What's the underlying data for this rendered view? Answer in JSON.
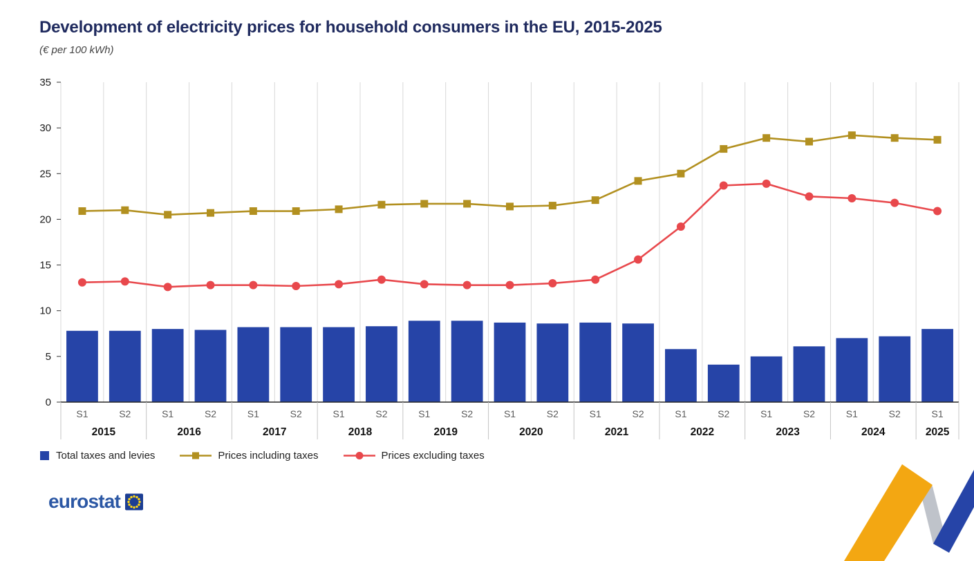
{
  "header": {
    "title": "Development of electricity prices for household consumers in the EU, 2015-2025",
    "subtitle": "(€ per 100 kWh)"
  },
  "legend": [
    {
      "id": "total-taxes-and-levies",
      "label": "Total taxes and levies",
      "swatch": "bar",
      "color": "#2644a7"
    },
    {
      "id": "prices-including-taxes",
      "label": "Prices including taxes",
      "swatch": "line-square",
      "color": "#b29020"
    },
    {
      "id": "prices-excluding-taxes",
      "label": "Prices excluding taxes",
      "swatch": "line-circle",
      "color": "#e8484c"
    }
  ],
  "footer": {
    "logo_text": "eurostat"
  },
  "colors": {
    "bar_blue": "#2644a7",
    "line_olive": "#b29020",
    "line_red": "#e8484c",
    "grid_gray": "#d8d8d8",
    "axis_dark": "#262626",
    "logo_blue": "#2b57a4",
    "flag_blue": "#1c3e94",
    "flag_star_yellow": "#ffd617",
    "ribbon_yellow": "#f3a712",
    "ribbon_gray": "#bfc3ca",
    "ribbon_blue": "#2644a7"
  },
  "chart_data": {
    "type": "bar",
    "subtype": "bar+line combo",
    "title": "Development of electricity prices for household consumers in the EU, 2015-2025",
    "unit": "€ per 100 kWh",
    "ylim": [
      0,
      35
    ],
    "yticks": [
      0,
      5,
      10,
      15,
      20,
      25,
      30,
      35
    ],
    "grid": "vertical-only",
    "legend_position": "bottom",
    "periods": [
      "S1",
      "S2",
      "S1",
      "S2",
      "S1",
      "S2",
      "S1",
      "S2",
      "S1",
      "S2",
      "S1",
      "S2",
      "S1",
      "S2",
      "S1",
      "S2",
      "S1",
      "S2",
      "S1",
      "S2",
      "S1"
    ],
    "year_groups": [
      {
        "year": "2015",
        "count": 2
      },
      {
        "year": "2016",
        "count": 2
      },
      {
        "year": "2017",
        "count": 2
      },
      {
        "year": "2018",
        "count": 2
      },
      {
        "year": "2019",
        "count": 2
      },
      {
        "year": "2020",
        "count": 2
      },
      {
        "year": "2021",
        "count": 2
      },
      {
        "year": "2022",
        "count": 2
      },
      {
        "year": "2023",
        "count": 2
      },
      {
        "year": "2024",
        "count": 2
      },
      {
        "year": "2025",
        "count": 1
      }
    ],
    "categories": [
      "2015-S1",
      "2015-S2",
      "2016-S1",
      "2016-S2",
      "2017-S1",
      "2017-S2",
      "2018-S1",
      "2018-S2",
      "2019-S1",
      "2019-S2",
      "2020-S1",
      "2020-S2",
      "2021-S1",
      "2021-S2",
      "2022-S1",
      "2022-S2",
      "2023-S1",
      "2023-S2",
      "2024-S1",
      "2024-S2",
      "2025-S1"
    ],
    "series": [
      {
        "name": "Total taxes and levies",
        "kind": "bar",
        "color": "#2644a7",
        "values": [
          7.8,
          7.8,
          8.0,
          7.9,
          8.2,
          8.2,
          8.2,
          8.3,
          8.9,
          8.9,
          8.7,
          8.6,
          8.7,
          8.6,
          5.8,
          4.1,
          5.0,
          6.1,
          7.0,
          7.2,
          8.0
        ]
      },
      {
        "name": "Prices including taxes",
        "kind": "line",
        "marker": "square",
        "color": "#b29020",
        "values": [
          20.9,
          21.0,
          20.5,
          20.7,
          20.9,
          20.9,
          21.1,
          21.6,
          21.7,
          21.7,
          21.4,
          21.5,
          22.1,
          24.2,
          25.0,
          27.7,
          28.9,
          28.5,
          29.2,
          28.9,
          28.7
        ]
      },
      {
        "name": "Prices excluding taxes",
        "kind": "line",
        "marker": "circle",
        "color": "#e8484c",
        "values": [
          13.1,
          13.2,
          12.6,
          12.8,
          12.8,
          12.7,
          12.9,
          13.4,
          12.9,
          12.8,
          12.8,
          13.0,
          13.4,
          15.6,
          19.2,
          23.7,
          23.9,
          22.5,
          22.3,
          21.8,
          20.9
        ]
      }
    ]
  }
}
